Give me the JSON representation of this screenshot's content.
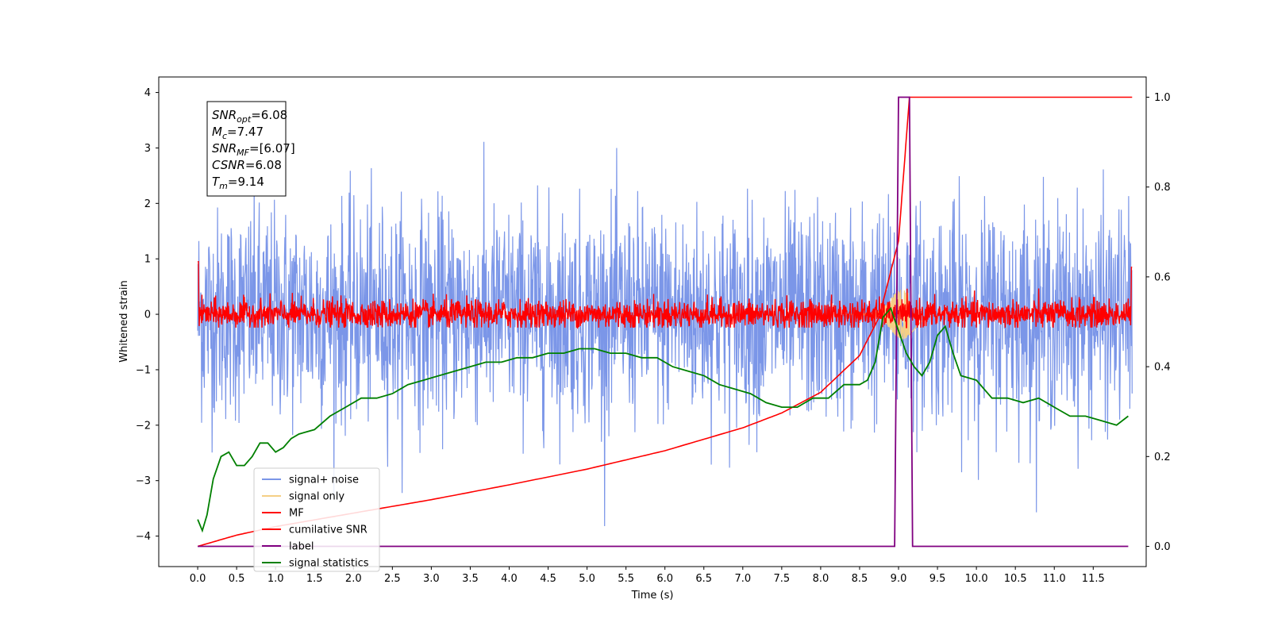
{
  "chart_data": {
    "type": "line",
    "xlabel": "Time (s)",
    "ylabel": "Whitened strain",
    "xlim": [
      -0.5,
      12.18
    ],
    "ylim": [
      -4.55,
      4.28
    ],
    "y2lim": [
      -0.045,
      1.045
    ],
    "x_ticks": [
      "0.0",
      "0.5",
      "1.0",
      "1.5",
      "2.0",
      "2.5",
      "3.0",
      "3.5",
      "4.0",
      "4.5",
      "5.0",
      "5.5",
      "6.0",
      "6.5",
      "7.0",
      "7.5",
      "8.0",
      "8.5",
      "9.0",
      "9.5",
      "10.0",
      "10.5",
      "11.0",
      "11.5"
    ],
    "y_ticks": [
      "4",
      "3",
      "2",
      "1",
      "0",
      "−1",
      "−2",
      "−3",
      "−4"
    ],
    "y2_ticks": [
      "1.0",
      "0.8",
      "0.6",
      "0.4",
      "0.2",
      "0.0"
    ],
    "annotation": [
      {
        "sym": "SNR",
        "sub": "opt",
        "val": "=6.08"
      },
      {
        "sym": "M",
        "sub": "c",
        "val": "=7.47"
      },
      {
        "sym": "SNR",
        "sub": "MF",
        "val": "=[6.07]"
      },
      {
        "sym": "CSNR",
        "sub": "",
        "val": "=6.08"
      },
      {
        "sym": "T",
        "sub": "m",
        "val": "=9.14"
      }
    ],
    "legend_position": "lower-left",
    "series": [
      {
        "name": "signal+ noise",
        "color": "#7b96e8",
        "axis": "left",
        "noise_std": 0.95,
        "noise_mean": 0.0,
        "x_range": [
          0,
          12
        ]
      },
      {
        "name": "signal only",
        "color": "#f5cf86",
        "axis": "left",
        "chirp_peak_time": 9.14,
        "chirp_amplitude": 0.45
      },
      {
        "name": "MF",
        "color": "#ff0000",
        "axis": "left",
        "noise_std": 0.13,
        "x_range": [
          0,
          12
        ]
      },
      {
        "name": "cumilative SNR",
        "color": "#ff0000",
        "axis": "right",
        "x": [
          0,
          0.5,
          1,
          2,
          3,
          4,
          5,
          6,
          7,
          7.5,
          8,
          8.5,
          8.75,
          9.0,
          9.14,
          12
        ],
        "y": [
          0.0,
          0.025,
          0.044,
          0.074,
          0.104,
          0.137,
          0.172,
          0.213,
          0.264,
          0.297,
          0.343,
          0.425,
          0.51,
          0.68,
          1.0,
          1.0
        ]
      },
      {
        "name": "label",
        "color": "#800080",
        "axis": "right",
        "x": [
          0,
          8.95,
          9.0,
          9.14,
          9.18,
          11.95
        ],
        "y": [
          0,
          0,
          1,
          1,
          0,
          0
        ]
      },
      {
        "name": "signal statistics",
        "color": "#008000",
        "axis": "right",
        "x": [
          0,
          0.06,
          0.12,
          0.2,
          0.3,
          0.4,
          0.5,
          0.6,
          0.7,
          0.8,
          0.9,
          1.0,
          1.1,
          1.2,
          1.3,
          1.5,
          1.7,
          1.9,
          2.1,
          2.3,
          2.5,
          2.7,
          2.9,
          3.1,
          3.3,
          3.5,
          3.7,
          3.9,
          4.1,
          4.3,
          4.5,
          4.7,
          4.9,
          5.1,
          5.3,
          5.5,
          5.7,
          5.9,
          6.1,
          6.3,
          6.5,
          6.7,
          6.9,
          7.1,
          7.3,
          7.5,
          7.7,
          7.9,
          8.1,
          8.3,
          8.5,
          8.6,
          8.7,
          8.8,
          8.9,
          9.0,
          9.1,
          9.2,
          9.3,
          9.4,
          9.5,
          9.6,
          9.7,
          9.8,
          10.0,
          10.2,
          10.4,
          10.6,
          10.8,
          11.0,
          11.2,
          11.4,
          11.6,
          11.8,
          11.95
        ],
        "y": [
          0.06,
          0.035,
          0.07,
          0.15,
          0.2,
          0.21,
          0.18,
          0.18,
          0.2,
          0.23,
          0.23,
          0.21,
          0.22,
          0.24,
          0.25,
          0.26,
          0.29,
          0.31,
          0.33,
          0.33,
          0.34,
          0.36,
          0.37,
          0.38,
          0.39,
          0.4,
          0.41,
          0.41,
          0.42,
          0.42,
          0.43,
          0.43,
          0.44,
          0.44,
          0.43,
          0.43,
          0.42,
          0.42,
          0.4,
          0.39,
          0.38,
          0.36,
          0.35,
          0.34,
          0.32,
          0.31,
          0.31,
          0.33,
          0.33,
          0.36,
          0.36,
          0.37,
          0.41,
          0.51,
          0.53,
          0.48,
          0.43,
          0.4,
          0.38,
          0.41,
          0.47,
          0.49,
          0.43,
          0.38,
          0.37,
          0.33,
          0.33,
          0.32,
          0.33,
          0.31,
          0.29,
          0.29,
          0.28,
          0.27,
          0.29
        ]
      }
    ]
  }
}
